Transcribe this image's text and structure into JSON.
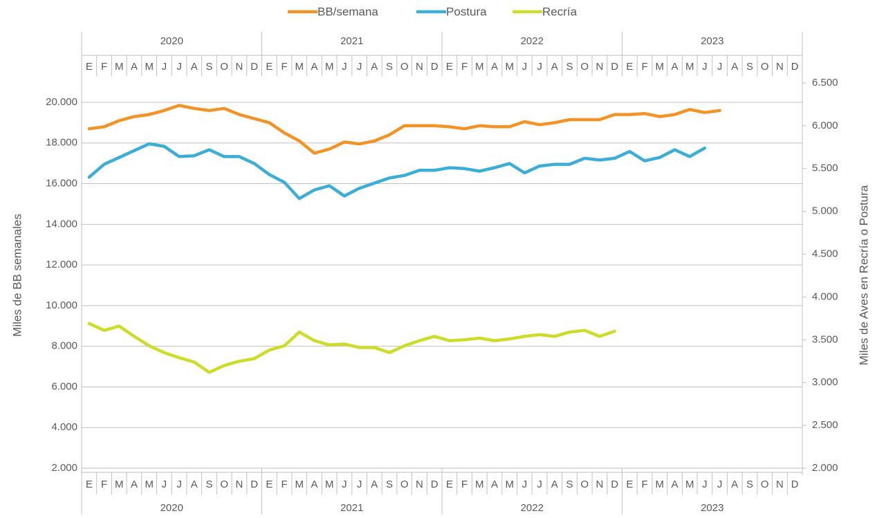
{
  "chart_data": {
    "type": "line",
    "categories": [
      "E",
      "F",
      "M",
      "A",
      "M",
      "J",
      "J",
      "A",
      "S",
      "O",
      "N",
      "D",
      "E",
      "F",
      "M",
      "A",
      "M",
      "J",
      "J",
      "A",
      "S",
      "O",
      "N",
      "D",
      "E",
      "F",
      "M",
      "A",
      "M",
      "J",
      "J",
      "A",
      "S",
      "O",
      "N",
      "D",
      "E",
      "F",
      "M",
      "A",
      "M",
      "J",
      "J",
      "A",
      "S",
      "O",
      "N",
      "D"
    ],
    "years": [
      "2020",
      "2021",
      "2022",
      "2023"
    ],
    "y_label": "Miles de BB semanales",
    "y2_label": "Miles de Aves en Recría o Postura",
    "ylim": [
      2000,
      20000
    ],
    "yticks": [
      {
        "value": 2000,
        "label": "2.000"
      },
      {
        "value": 4000,
        "label": "4.000"
      },
      {
        "value": 6000,
        "label": "6.000"
      },
      {
        "value": 8000,
        "label": "8.000"
      },
      {
        "value": 10000,
        "label": "10.000"
      },
      {
        "value": 12000,
        "label": "12.000"
      },
      {
        "value": 14000,
        "label": "14.000"
      },
      {
        "value": 16000,
        "label": "16.000"
      },
      {
        "value": 18000,
        "label": "18.000"
      },
      {
        "value": 20000,
        "label": "20.000"
      }
    ],
    "y2lim": [
      2000,
      6500
    ],
    "y2ticks": [
      {
        "value": 2000,
        "label": "2.000"
      },
      {
        "value": 2500,
        "label": "2.500"
      },
      {
        "value": 3000,
        "label": "3.000"
      },
      {
        "value": 3500,
        "label": "3.500"
      },
      {
        "value": 4000,
        "label": "4.000"
      },
      {
        "value": 4500,
        "label": "4.500"
      },
      {
        "value": 5000,
        "label": "5.000"
      },
      {
        "value": 5500,
        "label": "5.500"
      },
      {
        "value": 6000,
        "label": "6.000"
      },
      {
        "value": 6500,
        "label": "6.500"
      }
    ],
    "grid": true,
    "legend": "top",
    "series": [
      {
        "name": "BB/semana",
        "color": "#f39325",
        "values": [
          18700,
          18800,
          19100,
          19300,
          19400,
          19600,
          19850,
          19700,
          19600,
          19700,
          19400,
          19200,
          19000,
          18500,
          18100,
          17500,
          17700,
          18050,
          17950,
          18100,
          18400,
          18850,
          18850,
          18850,
          18800,
          18700,
          18850,
          18800,
          18800,
          19050,
          18900,
          19000,
          19150,
          19150,
          19150,
          19400,
          19400,
          19450,
          19300,
          19400,
          19650,
          19500,
          19600,
          null,
          null,
          null,
          null,
          null
        ]
      },
      {
        "name": "Postura",
        "color": "#3aaed8",
        "axis": "y2",
        "values": [
          5400,
          5550,
          5630,
          5710,
          5790,
          5760,
          5640,
          5650,
          5720,
          5640,
          5640,
          5560,
          5430,
          5340,
          5150,
          5250,
          5300,
          5180,
          5270,
          5330,
          5390,
          5420,
          5480,
          5480,
          5510,
          5500,
          5470,
          5510,
          5560,
          5450,
          5530,
          5550,
          5550,
          5620,
          5600,
          5620,
          5700,
          5590,
          5630,
          5720,
          5640,
          5740,
          null,
          null,
          null,
          null,
          null,
          null
        ]
      },
      {
        "name": "Recría",
        "color": "#cddc29",
        "axis": "y2",
        "values": [
          3690,
          3610,
          3660,
          3540,
          3430,
          3350,
          3290,
          3240,
          3120,
          3200,
          3250,
          3280,
          3380,
          3430,
          3590,
          3490,
          3440,
          3450,
          3410,
          3410,
          3350,
          3430,
          3490,
          3540,
          3490,
          3500,
          3520,
          3490,
          3510,
          3540,
          3560,
          3540,
          3590,
          3610,
          3540,
          3600,
          null,
          null,
          null,
          null,
          null,
          null,
          null,
          null,
          null,
          null,
          null,
          null
        ]
      }
    ]
  }
}
